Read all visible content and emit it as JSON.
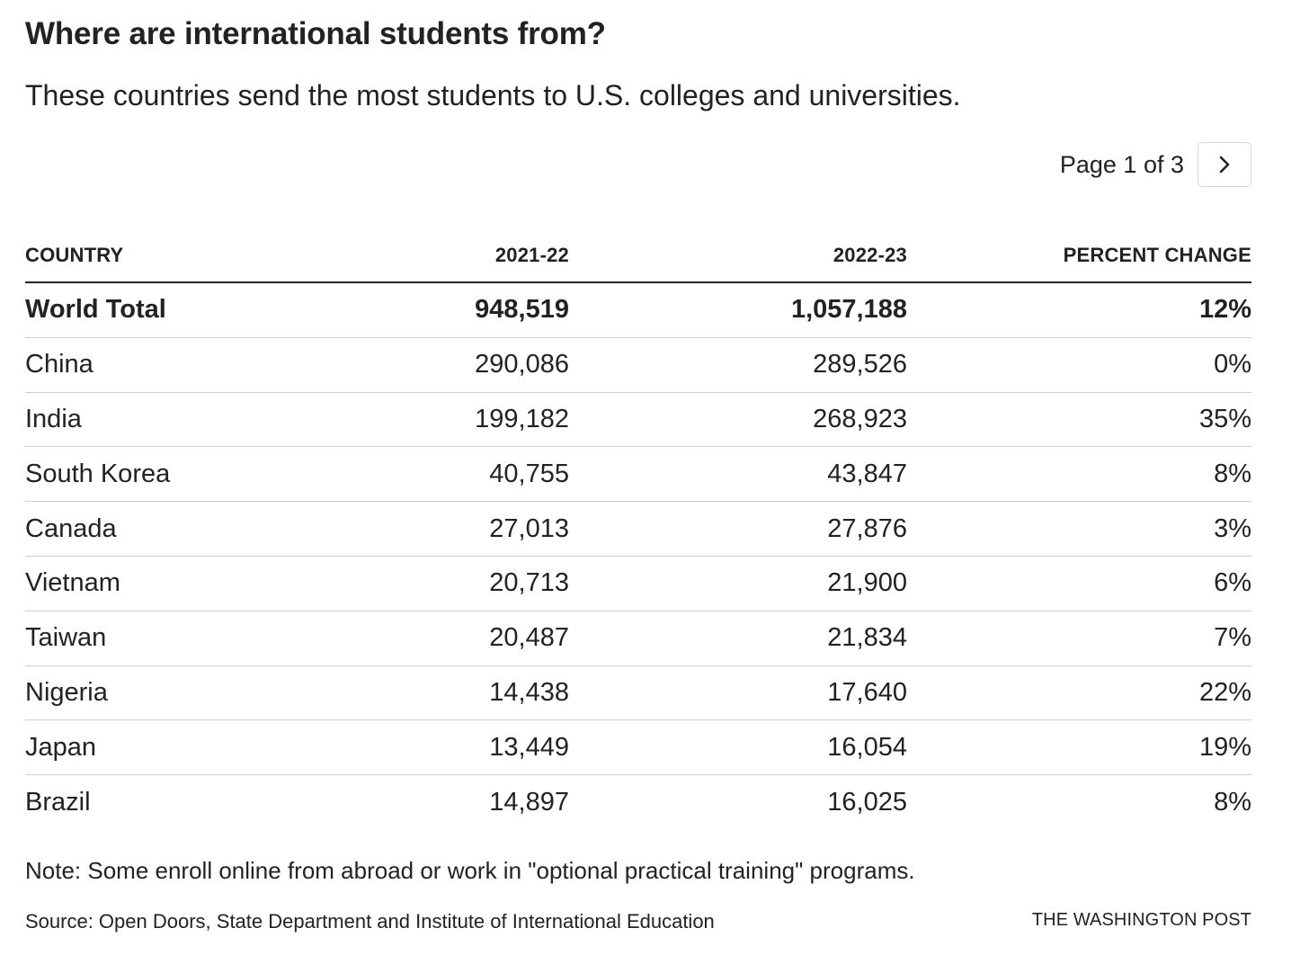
{
  "title": "Where are international students from?",
  "subtitle": "These countries send the most students to U.S. colleges and universities.",
  "pagination": {
    "label": "Page 1 of 3",
    "next_icon": "chevron-right-icon"
  },
  "chart_data": {
    "type": "table",
    "columns": [
      "COUNTRY",
      "2021-22",
      "2022-23",
      "PERCENT CHANGE"
    ],
    "rows": [
      [
        "World Total",
        "948,519",
        "1,057,188",
        "12%"
      ],
      [
        "China",
        "290,086",
        "289,526",
        "0%"
      ],
      [
        "India",
        "199,182",
        "268,923",
        "35%"
      ],
      [
        "South Korea",
        "40,755",
        "43,847",
        "8%"
      ],
      [
        "Canada",
        "27,013",
        "27,876",
        "3%"
      ],
      [
        "Vietnam",
        "20,713",
        "21,900",
        "6%"
      ],
      [
        "Taiwan",
        "20,487",
        "21,834",
        "7%"
      ],
      [
        "Nigeria",
        "14,438",
        "17,640",
        "22%"
      ],
      [
        "Japan",
        "13,449",
        "16,054",
        "19%"
      ],
      [
        "Brazil",
        "14,897",
        "16,025",
        "8%"
      ]
    ]
  },
  "note": "Note: Some enroll online from abroad or work in \"optional practical training\" programs.",
  "source": "Source: Open Doors, State Department and Institute of International Education",
  "credit": "THE WASHINGTON POST"
}
